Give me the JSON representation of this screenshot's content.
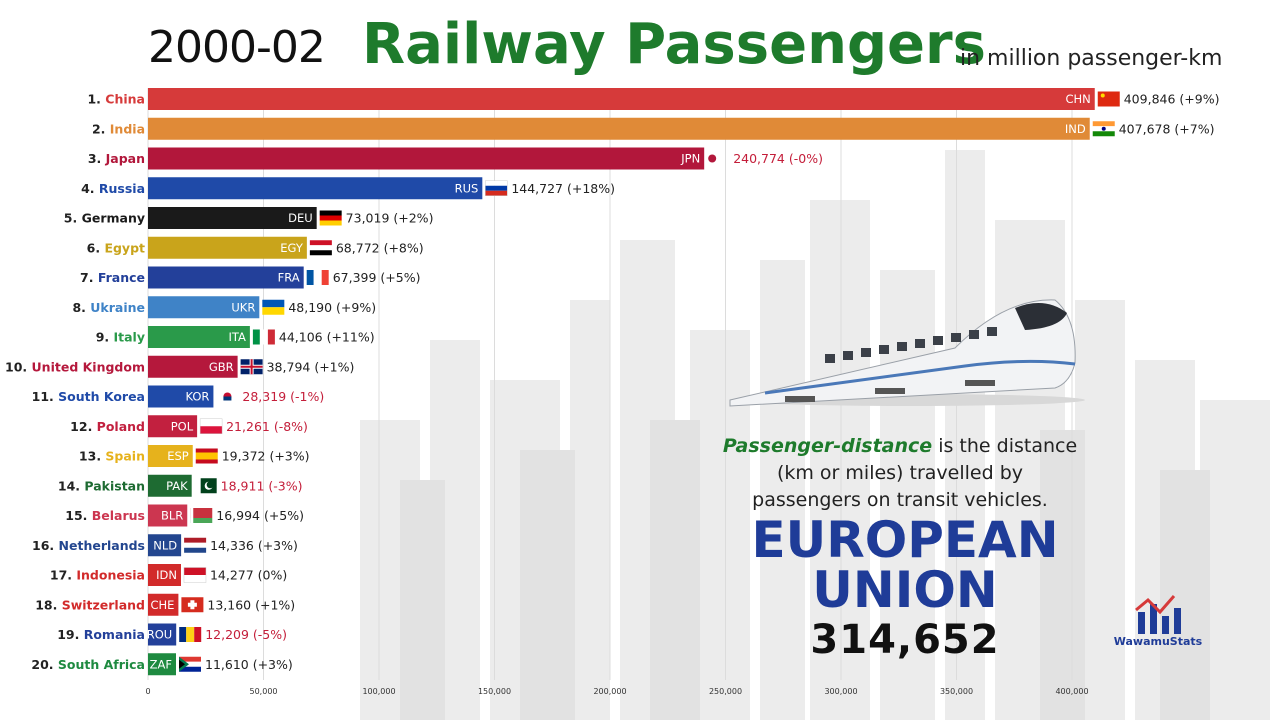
{
  "header": {
    "period": "2000-02",
    "title": "Railway Passengers",
    "unit": "in million passenger-km"
  },
  "note": {
    "highlight": "Passenger-distance",
    "text_after": " is the distance (km or miles) travelled by passengers on transit vehicles."
  },
  "eu": {
    "title": "EUROPEAN UNION",
    "value": "314,652"
  },
  "logo": {
    "text": "WawamuStats"
  },
  "colors": {
    "title": "#1e7b2c",
    "eu": "#1f3c98",
    "decline": "#c41e3a"
  },
  "chart_data": {
    "type": "bar",
    "orientation": "horizontal",
    "xlim": [
      0,
      400000
    ],
    "xticks": [
      0,
      50000,
      100000,
      150000,
      200000,
      250000,
      300000,
      350000,
      400000
    ],
    "xtick_labels": [
      "0",
      "50,000",
      "100,000",
      "150,000",
      "200,000",
      "250,000",
      "300,000",
      "350,000",
      "400,000"
    ],
    "grid": true,
    "rows": [
      {
        "rank": "1.",
        "name": "China",
        "code": "CHN",
        "value": 409846,
        "label": "409,846 (+9%)",
        "color": "#d63a3a",
        "name_color": "#d63a3a",
        "label_color": "#222",
        "flag": "cn"
      },
      {
        "rank": "2.",
        "name": "India",
        "code": "IND",
        "value": 407678,
        "label": "407,678 (+7%)",
        "color": "#e08a37",
        "name_color": "#e08a37",
        "label_color": "#222",
        "flag": "in"
      },
      {
        "rank": "3.",
        "name": "Japan",
        "code": "JPN",
        "value": 240774,
        "label": "240,774 (-0%)",
        "color": "#b2173b",
        "name_color": "#b2173b",
        "label_color": "#c41e3a",
        "flag": "jp"
      },
      {
        "rank": "4.",
        "name": "Russia",
        "code": "RUS",
        "value": 144727,
        "label": "144,727 (+18%)",
        "color": "#1f4aa8",
        "name_color": "#1f4aa8",
        "label_color": "#222",
        "flag": "ru"
      },
      {
        "rank": "5.",
        "name": "Germany",
        "code": "DEU",
        "value": 73019,
        "label": "73,019 (+2%)",
        "color": "#1a1a1a",
        "name_color": "#1a1a1a",
        "label_color": "#222",
        "flag": "de"
      },
      {
        "rank": "6.",
        "name": "Egypt",
        "code": "EGY",
        "value": 68772,
        "label": "68,772 (+8%)",
        "color": "#c9a41b",
        "name_color": "#c9a41b",
        "label_color": "#222",
        "flag": "eg"
      },
      {
        "rank": "7.",
        "name": "France",
        "code": "FRA",
        "value": 67399,
        "label": "67,399 (+5%)",
        "color": "#23409a",
        "name_color": "#23409a",
        "label_color": "#222",
        "flag": "fr"
      },
      {
        "rank": "8.",
        "name": "Ukraine",
        "code": "UKR",
        "value": 48190,
        "label": "48,190 (+9%)",
        "color": "#3f83c7",
        "name_color": "#3f83c7",
        "label_color": "#222",
        "flag": "ua"
      },
      {
        "rank": "9.",
        "name": "Italy",
        "code": "ITA",
        "value": 44106,
        "label": "44,106 (+11%)",
        "color": "#2a9a4a",
        "name_color": "#2a9a4a",
        "label_color": "#222",
        "flag": "it"
      },
      {
        "rank": "10.",
        "name": "United Kingdom",
        "code": "GBR",
        "value": 38794,
        "label": "38,794 (+1%)",
        "color": "#b5183c",
        "name_color": "#b5183c",
        "label_color": "#222",
        "flag": "gb"
      },
      {
        "rank": "11.",
        "name": "South Korea",
        "code": "KOR",
        "value": 28319,
        "label": "28,319 (-1%)",
        "color": "#1f4aa8",
        "name_color": "#1f4aa8",
        "label_color": "#c41e3a",
        "flag": "kr"
      },
      {
        "rank": "12.",
        "name": "Poland",
        "code": "POL",
        "value": 21261,
        "label": "21,261 (-8%)",
        "color": "#c2203f",
        "name_color": "#c2203f",
        "label_color": "#c41e3a",
        "flag": "pl"
      },
      {
        "rank": "13.",
        "name": "Spain",
        "code": "ESP",
        "value": 19372,
        "label": "19,372 (+3%)",
        "color": "#e6b21c",
        "name_color": "#e6b21c",
        "label_color": "#222",
        "flag": "es"
      },
      {
        "rank": "14.",
        "name": "Pakistan",
        "code": "PAK",
        "value": 18911,
        "label": "18,911 (-3%)",
        "color": "#1e6b32",
        "name_color": "#1e6b32",
        "label_color": "#c41e3a",
        "flag": "pk"
      },
      {
        "rank": "15.",
        "name": "Belarus",
        "code": "BLR",
        "value": 16994,
        "label": "16,994 (+5%)",
        "color": "#cc3650",
        "name_color": "#cc3650",
        "label_color": "#222",
        "flag": "by"
      },
      {
        "rank": "16.",
        "name": "Netherlands",
        "code": "NLD",
        "value": 14336,
        "label": "14,336 (+3%)",
        "color": "#23468f",
        "name_color": "#23468f",
        "label_color": "#222",
        "flag": "nl"
      },
      {
        "rank": "17.",
        "name": "Indonesia",
        "code": "IDN",
        "value": 14277,
        "label": "14,277 (0%)",
        "color": "#d22a2a",
        "name_color": "#d22a2a",
        "label_color": "#222",
        "flag": "id"
      },
      {
        "rank": "18.",
        "name": "Switzerland",
        "code": "CHE",
        "value": 13160,
        "label": "13,160 (+1%)",
        "color": "#d22a2a",
        "name_color": "#d22a2a",
        "label_color": "#222",
        "flag": "ch"
      },
      {
        "rank": "19.",
        "name": "Romania",
        "code": "ROU",
        "value": 12209,
        "label": "12,209 (-5%)",
        "color": "#23409a",
        "name_color": "#23409a",
        "label_color": "#c41e3a",
        "flag": "ro"
      },
      {
        "rank": "20.",
        "name": "South Africa",
        "code": "ZAF",
        "value": 11610,
        "label": "11,610 (+3%)",
        "color": "#1e8a40",
        "name_color": "#1e8a40",
        "label_color": "#222",
        "flag": "za"
      }
    ]
  }
}
